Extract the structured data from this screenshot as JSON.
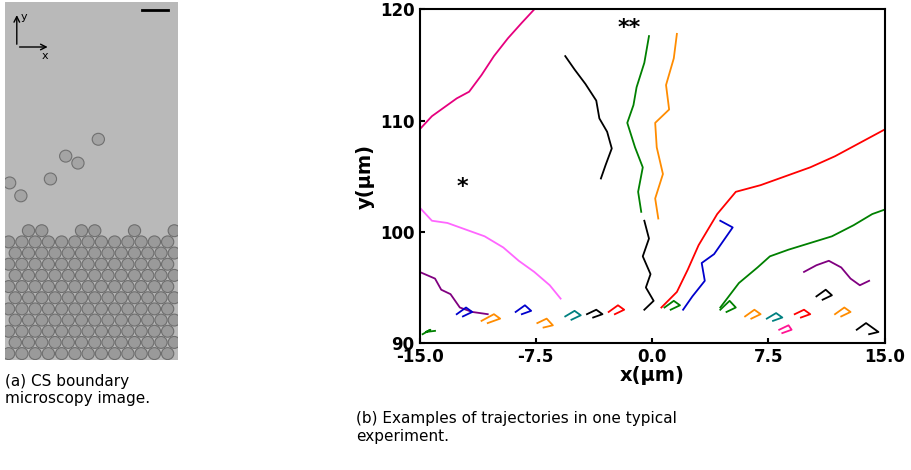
{
  "chart_data": {
    "type": "line",
    "xlabel": "x(μm)",
    "ylabel": "y(μm)",
    "xlim": [
      -15,
      15
    ],
    "xticks": [
      {
        "value": -15,
        "label": "-15.0"
      },
      -7.5,
      {
        "value": 0,
        "label": "0.0"
      },
      7.5,
      {
        "value": 15,
        "label": "15.0"
      }
    ],
    "ylim": [
      90,
      120
    ],
    "yticks": [
      90,
      100,
      110,
      120
    ],
    "grid": false,
    "annotations": [
      {
        "text": "*",
        "x": -12.6,
        "y": 104.0
      },
      {
        "text": "**",
        "x": -2.2,
        "y": 118.3
      }
    ],
    "series": [
      {
        "color": "#e6007e",
        "x": [
          -15.0,
          -14.2,
          -13.3,
          -12.6,
          -11.8,
          -11.0,
          -10.2,
          -9.3,
          -8.4,
          -7.6
        ],
        "values": [
          109.2,
          110.4,
          111.3,
          112.0,
          112.6,
          114.1,
          115.8,
          117.4,
          118.8,
          120.0
        ]
      },
      {
        "color": "#000000",
        "x": [
          -5.6,
          -5.0,
          -4.3,
          -3.6,
          -3.4,
          -2.9,
          -2.6,
          -3.0,
          -3.3
        ],
        "values": [
          115.8,
          114.6,
          113.3,
          111.8,
          110.2,
          109.0,
          107.5,
          106.0,
          104.8
        ]
      },
      {
        "color": "#008000",
        "x": [
          -0.2,
          -0.5,
          -1.0,
          -1.2,
          -1.6,
          -1.1,
          -0.6,
          -0.9,
          -0.7
        ],
        "values": [
          117.6,
          115.2,
          113.0,
          111.4,
          109.8,
          107.6,
          105.8,
          103.6,
          101.8
        ]
      },
      {
        "color": "#ff8c00",
        "x": [
          1.6,
          1.4,
          0.9,
          1.1,
          0.2,
          0.3,
          0.7,
          0.2,
          0.4
        ],
        "values": [
          117.8,
          115.6,
          113.2,
          111.0,
          109.8,
          107.6,
          105.2,
          103.0,
          101.2
        ]
      },
      {
        "color": "#000000",
        "x": [
          -0.5,
          -0.2,
          -0.6,
          -0.1,
          -0.4,
          0.1,
          -0.5
        ],
        "values": [
          101.0,
          99.4,
          97.8,
          96.2,
          95.0,
          93.8,
          93.0
        ]
      },
      {
        "color": "#ff0000",
        "x": [
          0.6,
          1.6,
          2.3,
          3.0,
          4.2,
          5.4,
          7.0,
          8.6,
          10.2,
          11.8,
          13.4,
          15.0
        ],
        "values": [
          93.2,
          94.6,
          96.6,
          98.8,
          101.6,
          103.6,
          104.2,
          105.0,
          105.8,
          106.8,
          108.0,
          109.2
        ]
      },
      {
        "color": "#0000cd",
        "x": [
          2.0,
          2.6,
          3.4,
          3.2,
          4.0,
          4.6,
          5.2,
          4.4
        ],
        "values": [
          93.0,
          94.2,
          95.6,
          97.2,
          98.0,
          99.2,
          100.4,
          101.0
        ]
      },
      {
        "color": "#008000",
        "x": [
          4.4,
          5.6,
          6.8,
          7.6,
          8.8,
          10.2,
          11.6,
          13.0,
          14.2,
          15.0
        ],
        "values": [
          93.2,
          95.4,
          96.8,
          97.8,
          98.4,
          99.0,
          99.6,
          100.6,
          101.6,
          102.0
        ]
      },
      {
        "color": "#ff66ff",
        "x": [
          -15.0,
          -14.2,
          -13.2,
          -12.0,
          -10.8,
          -9.6,
          -8.6,
          -7.6,
          -6.6,
          -5.9
        ],
        "values": [
          102.2,
          101.0,
          100.8,
          100.2,
          99.6,
          98.6,
          97.4,
          96.4,
          95.2,
          94.0
        ]
      },
      {
        "color": "#800080",
        "x": [
          -15.0,
          -14.0,
          -13.6,
          -13.0,
          -12.4,
          -11.6,
          -10.6
        ],
        "values": [
          96.4,
          95.8,
          94.8,
          94.4,
          93.2,
          92.8,
          92.6
        ]
      },
      {
        "color": "#800080",
        "x": [
          9.8,
          10.6,
          11.4,
          12.2,
          12.8,
          13.4,
          14.0
        ],
        "values": [
          96.4,
          97.0,
          97.4,
          96.8,
          95.8,
          95.2,
          95.6
        ]
      },
      {
        "color": "#008000",
        "x": [
          -14.8,
          -14.3,
          -14.6,
          -14.0
        ],
        "values": [
          90.8,
          91.2,
          91.0,
          91.1
        ]
      },
      {
        "color": "#0000cd",
        "x": [
          -12.6,
          -12.0,
          -11.6,
          -12.2
        ],
        "values": [
          92.6,
          93.2,
          92.8,
          92.4
        ]
      },
      {
        "color": "#ff8c00",
        "x": [
          -11.0,
          -10.2,
          -9.8,
          -10.6
        ],
        "values": [
          92.0,
          92.6,
          92.2,
          91.8
        ]
      },
      {
        "color": "#0000cd",
        "x": [
          -8.8,
          -8.2,
          -7.8,
          -8.4
        ],
        "values": [
          92.8,
          93.4,
          92.9,
          92.6
        ]
      },
      {
        "color": "#ff8c00",
        "x": [
          -7.4,
          -6.8,
          -6.4,
          -7.0
        ],
        "values": [
          91.8,
          92.2,
          91.6,
          91.4
        ]
      },
      {
        "color": "#008080",
        "x": [
          -5.6,
          -5.0,
          -4.6,
          -5.2
        ],
        "values": [
          92.4,
          92.9,
          92.5,
          92.1
        ]
      },
      {
        "color": "#000000",
        "x": [
          -4.2,
          -3.6,
          -3.2,
          -3.8
        ],
        "values": [
          92.6,
          93.0,
          92.6,
          92.3
        ]
      },
      {
        "color": "#ff0000",
        "x": [
          -2.8,
          -2.2,
          -1.8,
          -2.4
        ],
        "values": [
          92.8,
          93.4,
          93.0,
          92.6
        ]
      },
      {
        "color": "#008000",
        "x": [
          0.8,
          1.4,
          1.8,
          1.2
        ],
        "values": [
          93.2,
          93.8,
          93.4,
          93.0
        ]
      },
      {
        "color": "#008000",
        "x": [
          4.4,
          5.0,
          5.4,
          4.8
        ],
        "values": [
          93.0,
          93.8,
          93.2,
          92.8
        ]
      },
      {
        "color": "#ff8c00",
        "x": [
          6.0,
          6.6,
          7.0,
          6.4
        ],
        "values": [
          92.4,
          93.0,
          92.6,
          92.2
        ]
      },
      {
        "color": "#008080",
        "x": [
          7.4,
          8.0,
          8.4,
          7.8
        ],
        "values": [
          92.2,
          92.7,
          92.3,
          92.0
        ]
      },
      {
        "color": "#ff0000",
        "x": [
          9.2,
          9.8,
          10.2,
          9.6
        ],
        "values": [
          92.6,
          93.0,
          92.6,
          92.3
        ]
      },
      {
        "color": "#000000",
        "x": [
          10.6,
          11.2,
          11.6,
          11.0
        ],
        "values": [
          94.2,
          94.8,
          94.3,
          93.9
        ]
      },
      {
        "color": "#ff1493",
        "x": [
          8.2,
          8.8,
          9.0,
          8.4
        ],
        "values": [
          91.2,
          91.6,
          91.2,
          90.9
        ]
      },
      {
        "color": "#ff8c00",
        "x": [
          11.8,
          12.4,
          12.8,
          12.2
        ],
        "values": [
          92.6,
          93.2,
          92.8,
          92.4
        ]
      },
      {
        "color": "#000000",
        "x": [
          13.2,
          13.8,
          14.6,
          14.0
        ],
        "values": [
          91.2,
          91.8,
          91.0,
          90.8
        ]
      }
    ]
  },
  "image_panel": {
    "axis_labels": {
      "x": "x",
      "y": "y"
    },
    "caption": "(a) CS boundary microscopy image."
  },
  "chart_caption": "(b) Examples of trajectories in one typical experiment."
}
